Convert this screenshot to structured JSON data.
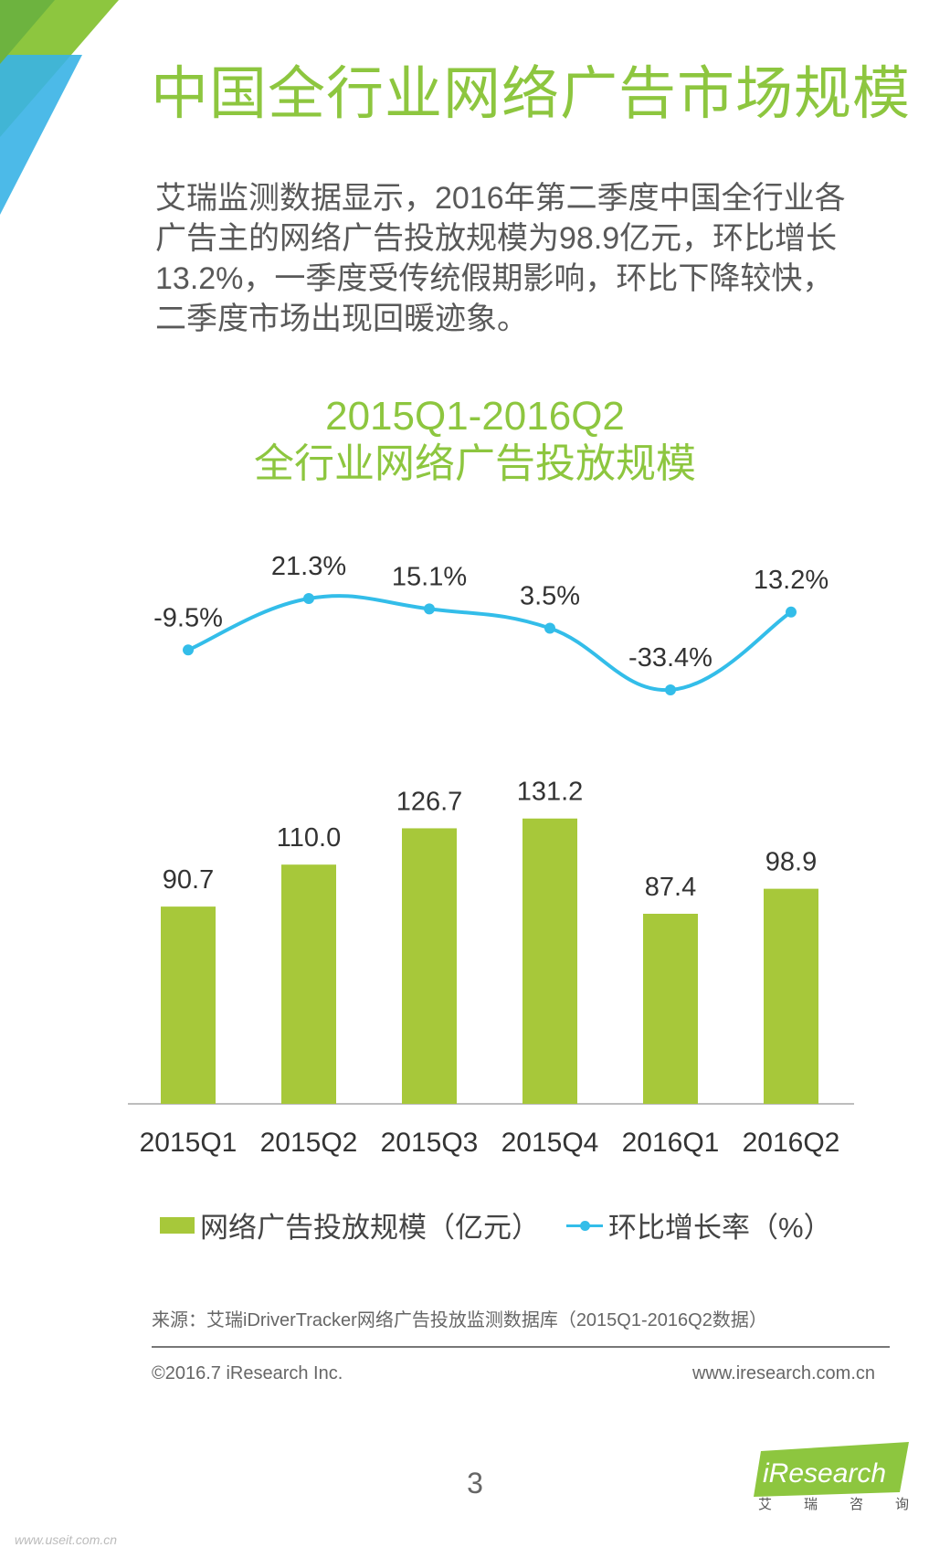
{
  "page": {
    "title": "中国全行业网络广告市场规模",
    "intro": "艾瑞监测数据显示，2016年第二季度中国全行业各广告主的网络广告投放规模为98.9亿元，环比增长13.2%，一季度受传统假期影响，环比下降较快，二季度市场出现回暖迹象。"
  },
  "chart_data": {
    "type": "bar",
    "title_line1": "2015Q1-2016Q2",
    "title_line2": "全行业网络广告投放规模",
    "categories": [
      "2015Q1",
      "2015Q2",
      "2015Q3",
      "2015Q4",
      "2016Q1",
      "2016Q2"
    ],
    "series": [
      {
        "name": "网络广告投放规模（亿元）",
        "type": "bar",
        "values": [
          90.7,
          110.0,
          126.7,
          131.2,
          87.4,
          98.9
        ],
        "labels": [
          "90.7",
          "110.0",
          "126.7",
          "131.2",
          "87.4",
          "98.9"
        ],
        "color": "#a7c83a"
      },
      {
        "name": "环比增长率（%）",
        "type": "line",
        "values": [
          -9.5,
          21.3,
          15.1,
          3.5,
          -33.4,
          13.2
        ],
        "labels": [
          "-9.5%",
          "21.3%",
          "15.1%",
          "3.5%",
          "-33.4%",
          "13.2%"
        ],
        "color": "#33bde9"
      }
    ],
    "legend_position": "bottom",
    "grid": false
  },
  "footer": {
    "source": "来源：艾瑞iDriverTracker网络广告投放监测数据库（2015Q1-2016Q2数据）",
    "copyright": "©2016.7 iResearch Inc.",
    "website": "www.iresearch.com.cn",
    "page_number": "3",
    "brand": "iResearch",
    "brand_chars": [
      "艾",
      "瑞",
      "咨",
      "询"
    ],
    "watermark": "www.useit.com.cn"
  },
  "colors": {
    "accent_green": "#8dc63f",
    "bar_green": "#a7c83a",
    "line_blue": "#33bde9"
  }
}
